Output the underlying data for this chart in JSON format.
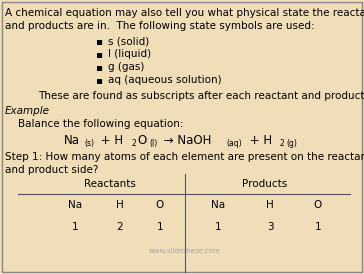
{
  "background_color": "#f0deb8",
  "border_color": "#888888",
  "text_color": "#000000",
  "title_line1": "A chemical equation may also tell you what physical state the reactants",
  "title_line2": "and products are in.  The following state symbols are used:",
  "bullets": [
    "s (solid)",
    "l (liquid)",
    "g (gas)",
    "aq (aqueous solution)"
  ],
  "subscript_note": "These are found as subscripts after each reactant and product.",
  "example_label": "Example",
  "balance_label": "Balance the following equation:",
  "step1_line1": "Step 1: How many atoms of each element are present on the reactant",
  "step1_line2": "and product side?",
  "reactants_label": "Reactants",
  "products_label": "Products",
  "col_headers_left": [
    "Na",
    "H",
    "O"
  ],
  "col_headers_right": [
    "Na",
    "H",
    "O"
  ],
  "row_vals_left": [
    "1",
    "2",
    "1"
  ],
  "row_vals_right": [
    "1",
    "3",
    "1"
  ],
  "watermark": "www.sliderbase.com",
  "fs_main": 7.5,
  "fs_small": 5.5,
  "fs_eq": 8.5
}
